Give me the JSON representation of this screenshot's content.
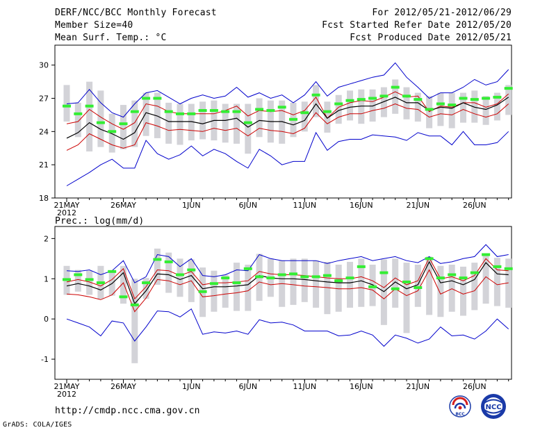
{
  "header": {
    "title": "DERF/NCC/BCC Monthly Forecast",
    "member_size": "Member Size=40",
    "variable": "Mean Surf. Temp.: °C",
    "period": "For 2012/05/21-2012/06/29",
    "refer_date": "Fcst Started Refer Date 2012/05/20",
    "produced_date": "Fcst Produced Date 2012/05/21"
  },
  "footer": {
    "url": "http://cmdp.ncc.cma.gov.cn",
    "credit": "GrADS: COLA/IGES",
    "logo_bcc": "BCC",
    "logo_ncc": "NCC"
  },
  "colors": {
    "mean": "#000000",
    "spread": "#cc0000",
    "extreme": "#0000cc",
    "median": "#33ee33",
    "box": "#d3d3d8"
  },
  "chart_data": [
    {
      "type": "line",
      "title": "",
      "ylabel": "Mean Surf. Temp.: °C",
      "xlabel": "",
      "ylim": [
        18,
        31.8
      ],
      "yticks": [
        "18",
        "21",
        "24",
        "27",
        "30"
      ],
      "xtick_labels": [
        "21MAY",
        "26MAY",
        "1JUN",
        "6JUN",
        "11JUN",
        "16JUN",
        "21JUN",
        "26JUN"
      ],
      "xtick_days": [
        1,
        6,
        12,
        17,
        22,
        27,
        32,
        37
      ],
      "year_label": "2012",
      "x_days": [
        1,
        2,
        3,
        4,
        5,
        6,
        7,
        8,
        9,
        10,
        11,
        12,
        13,
        14,
        15,
        16,
        17,
        18,
        19,
        20,
        21,
        22,
        23,
        24,
        25,
        26,
        27,
        28,
        29,
        30,
        31,
        32,
        33,
        34,
        35,
        36,
        37,
        38,
        39,
        40
      ],
      "series": [
        {
          "name": "max",
          "values": [
            19.1,
            19.7,
            20.3,
            21.0,
            21.5,
            20.7,
            20.7,
            23.2,
            22.0,
            21.5,
            21.9,
            22.7,
            21.8,
            22.4,
            22.0,
            21.3,
            20.7,
            22.4,
            21.8,
            21.0,
            21.3,
            21.3,
            23.9,
            22.3,
            23.1,
            23.3,
            23.3,
            23.7,
            23.6,
            23.5,
            23.2,
            23.9,
            23.6,
            23.6,
            22.8,
            24.0,
            22.8,
            22.8,
            23.0,
            24.0
          ]
        },
        {
          "name": "upper",
          "values": [
            26.5,
            26.6,
            27.8,
            26.6,
            25.7,
            25.3,
            26.5,
            27.5,
            27.7,
            27.1,
            26.5,
            27.0,
            27.3,
            27.0,
            27.2,
            28.0,
            27.1,
            27.5,
            27.0,
            27.3,
            26.6,
            27.3,
            28.5,
            27.2,
            28.0,
            28.3,
            28.6,
            28.9,
            29.1,
            30.2,
            28.9,
            28.0,
            27.0,
            27.5,
            27.5,
            28.0,
            28.7,
            28.2,
            28.5,
            29.6
          ]
        },
        {
          "name": "q75",
          "values": [
            24.7,
            24.9,
            26.0,
            25.3,
            24.7,
            24.2,
            24.8,
            26.5,
            26.3,
            25.8,
            25.6,
            25.6,
            25.6,
            25.6,
            25.9,
            26.3,
            25.4,
            25.9,
            25.8,
            25.9,
            25.5,
            25.9,
            27.1,
            25.2,
            26.2,
            26.6,
            26.8,
            26.7,
            27.1,
            27.6,
            27.1,
            27.2,
            25.8,
            26.3,
            26.2,
            26.6,
            26.6,
            26.2,
            26.5,
            27.4
          ]
        },
        {
          "name": "mean",
          "values": [
            23.4,
            23.9,
            24.8,
            24.2,
            23.8,
            23.3,
            23.9,
            25.7,
            25.4,
            24.9,
            24.9,
            24.9,
            24.7,
            25.0,
            25.0,
            25.2,
            24.4,
            25.0,
            24.9,
            24.9,
            24.6,
            25.0,
            26.5,
            25.2,
            25.9,
            26.2,
            26.3,
            26.3,
            26.7,
            27.1,
            26.6,
            26.6,
            25.9,
            26.2,
            26.1,
            26.6,
            26.2,
            26.0,
            26.4,
            27.1
          ]
        },
        {
          "name": "q25",
          "values": [
            22.3,
            22.8,
            23.8,
            23.3,
            22.8,
            22.5,
            22.8,
            24.8,
            24.5,
            24.1,
            24.2,
            24.1,
            24.0,
            24.3,
            24.1,
            24.3,
            23.6,
            24.3,
            24.1,
            24.0,
            23.8,
            24.3,
            25.7,
            24.7,
            25.3,
            25.6,
            25.6,
            25.9,
            26.1,
            26.5,
            26.1,
            26.0,
            25.3,
            25.6,
            25.5,
            26.0,
            25.6,
            25.3,
            25.6,
            26.5
          ]
        },
        {
          "name": "median",
          "values": [
            26.3,
            25.6,
            26.3,
            24.8,
            24.0,
            24.7,
            25.8,
            27.0,
            27.0,
            25.8,
            25.6,
            25.6,
            25.9,
            25.9,
            25.8,
            25.8,
            24.8,
            26.0,
            25.9,
            26.2,
            25.1,
            25.7,
            27.3,
            25.8,
            26.5,
            26.8,
            26.9,
            27.0,
            27.2,
            28.0,
            27.2,
            26.9,
            26.0,
            26.5,
            26.4,
            27.0,
            26.9,
            27.0,
            27.1,
            27.9
          ]
        },
        {
          "name": "box_high",
          "values": [
            28.2,
            26.6,
            28.5,
            27.7,
            25.6,
            26.4,
            26.8,
            27.5,
            27.5,
            26.6,
            26.5,
            26.5,
            26.7,
            26.8,
            26.5,
            26.5,
            26.5,
            27.0,
            26.8,
            26.8,
            26.6,
            26.7,
            28.2,
            26.7,
            27.3,
            27.7,
            27.8,
            27.8,
            28.0,
            28.7,
            28.0,
            27.5,
            27.2,
            27.5,
            27.5,
            27.5,
            27.7,
            27.2,
            27.5,
            28.2
          ]
        },
        {
          "name": "box_low",
          "values": [
            24.9,
            23.5,
            22.2,
            22.6,
            22.1,
            22.4,
            22.6,
            23.6,
            23.4,
            22.9,
            22.8,
            23.2,
            23.3,
            23.2,
            23.0,
            22.9,
            22.0,
            23.5,
            23.0,
            22.9,
            23.5,
            24.0,
            25.3,
            23.9,
            24.7,
            25.0,
            24.7,
            24.9,
            25.3,
            25.6,
            25.1,
            24.9,
            24.3,
            24.5,
            24.3,
            24.8,
            24.8,
            24.6,
            25.0,
            25.5
          ]
        }
      ]
    },
    {
      "type": "line",
      "title": "",
      "ylabel": "Prec.: log(mm/d)",
      "xlabel": "",
      "ylim": [
        -1.5,
        2.3
      ],
      "yticks": [
        "-1",
        "0",
        "1",
        "2"
      ],
      "xtick_labels": [
        "21MAY",
        "26MAY",
        "1JUN",
        "6JUN",
        "11JUN",
        "16JUN",
        "21JUN",
        "26JUN"
      ],
      "xtick_days": [
        1,
        6,
        12,
        17,
        22,
        27,
        32,
        37
      ],
      "year_label": "2012",
      "x_days": [
        1,
        2,
        3,
        4,
        5,
        6,
        7,
        8,
        9,
        10,
        11,
        12,
        13,
        14,
        15,
        16,
        17,
        18,
        19,
        20,
        21,
        22,
        23,
        24,
        25,
        26,
        27,
        28,
        29,
        30,
        31,
        32,
        33,
        34,
        35,
        36,
        37,
        38,
        39,
        40
      ],
      "series": [
        {
          "name": "max",
          "values": [
            0.0,
            -0.1,
            -0.2,
            -0.42,
            -0.05,
            -0.1,
            -0.55,
            -0.2,
            0.2,
            0.18,
            0.05,
            0.25,
            -0.38,
            -0.32,
            -0.35,
            -0.3,
            -0.38,
            -0.02,
            -0.1,
            -0.08,
            -0.15,
            -0.3,
            -0.3,
            -0.3,
            -0.42,
            -0.4,
            -0.3,
            -0.4,
            -0.68,
            -0.4,
            -0.48,
            -0.6,
            -0.5,
            -0.2,
            -0.42,
            -0.4,
            -0.5,
            -0.3,
            0.0,
            -0.25
          ]
        },
        {
          "name": "upper",
          "values": [
            1.2,
            1.18,
            1.22,
            1.1,
            1.2,
            1.45,
            0.9,
            1.05,
            1.6,
            1.55,
            1.3,
            1.5,
            1.08,
            1.05,
            1.1,
            1.22,
            1.2,
            1.6,
            1.5,
            1.45,
            1.45,
            1.45,
            1.45,
            1.38,
            1.45,
            1.5,
            1.55,
            1.45,
            1.5,
            1.55,
            1.45,
            1.4,
            1.55,
            1.38,
            1.42,
            1.5,
            1.55,
            1.85,
            1.55,
            1.6
          ]
        },
        {
          "name": "q75",
          "values": [
            0.92,
            0.98,
            0.92,
            0.82,
            0.98,
            1.25,
            0.5,
            0.8,
            1.22,
            1.2,
            1.08,
            1.18,
            0.85,
            0.9,
            0.9,
            0.92,
            0.95,
            1.18,
            1.12,
            1.1,
            1.1,
            1.08,
            1.05,
            1.02,
            1.0,
            1.0,
            1.05,
            0.95,
            0.78,
            1.02,
            0.85,
            0.95,
            1.52,
            1.0,
            1.05,
            0.95,
            1.08,
            1.5,
            1.22,
            1.2
          ]
        },
        {
          "name": "mean",
          "values": [
            0.82,
            0.88,
            0.82,
            0.72,
            0.88,
            1.15,
            0.38,
            0.7,
            1.12,
            1.1,
            0.98,
            1.08,
            0.75,
            0.8,
            0.8,
            0.82,
            0.85,
            1.08,
            1.02,
            1.0,
            1.0,
            0.98,
            0.95,
            0.92,
            0.9,
            0.9,
            0.95,
            0.85,
            0.68,
            0.92,
            0.75,
            0.85,
            1.42,
            0.9,
            0.95,
            0.85,
            0.98,
            1.4,
            1.12,
            1.1
          ]
        },
        {
          "name": "q25",
          "values": [
            0.62,
            0.6,
            0.55,
            0.48,
            0.6,
            0.9,
            0.18,
            0.52,
            0.98,
            0.95,
            0.85,
            0.95,
            0.55,
            0.58,
            0.62,
            0.65,
            0.7,
            0.92,
            0.85,
            0.88,
            0.85,
            0.82,
            0.8,
            0.78,
            0.75,
            0.75,
            0.78,
            0.72,
            0.5,
            0.75,
            0.58,
            0.7,
            1.22,
            0.62,
            0.75,
            0.62,
            0.7,
            1.05,
            0.85,
            0.9
          ]
        },
        {
          "name": "median",
          "values": [
            0.98,
            1.1,
            0.98,
            0.9,
            1.18,
            0.55,
            0.35,
            0.9,
            1.48,
            1.42,
            1.1,
            1.22,
            0.68,
            0.88,
            1.02,
            0.9,
            1.25,
            1.05,
            1.02,
            1.1,
            1.12,
            1.05,
            1.05,
            1.08,
            0.95,
            1.02,
            1.3,
            0.8,
            1.15,
            0.75,
            0.92,
            0.78,
            1.5,
            1.02,
            1.1,
            1.02,
            1.15,
            1.6,
            1.3,
            1.25
          ]
        },
        {
          "name": "box_high",
          "values": [
            1.32,
            1.22,
            1.2,
            1.32,
            1.2,
            1.32,
            1.0,
            1.02,
            1.75,
            1.65,
            1.5,
            1.48,
            1.28,
            1.2,
            1.1,
            1.4,
            1.35,
            1.62,
            1.5,
            1.45,
            1.5,
            1.5,
            1.45,
            1.42,
            1.35,
            1.42,
            1.5,
            1.35,
            1.48,
            1.5,
            1.4,
            1.35,
            1.55,
            1.32,
            1.35,
            1.3,
            1.4,
            1.62,
            1.52,
            1.5
          ]
        },
        {
          "name": "box_low",
          "values": [
            0.6,
            0.68,
            0.6,
            0.5,
            0.58,
            0.38,
            -1.1,
            0.5,
            0.85,
            0.65,
            0.55,
            0.42,
            0.05,
            0.18,
            0.28,
            0.2,
            0.2,
            0.45,
            0.55,
            0.3,
            0.35,
            0.42,
            0.28,
            0.12,
            0.18,
            0.28,
            0.3,
            0.32,
            -0.15,
            0.28,
            -0.35,
            0.3,
            0.1,
            0.05,
            0.18,
            0.08,
            0.22,
            0.38,
            0.32,
            0.28
          ]
        }
      ]
    }
  ]
}
